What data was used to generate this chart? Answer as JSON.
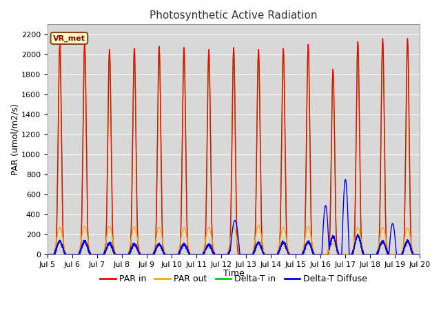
{
  "title": "Photosynthetic Active Radiation",
  "xlabel": "Time",
  "ylabel": "PAR (umol/m2/s)",
  "ylim": [
    0,
    2300
  ],
  "yticks": [
    0,
    200,
    400,
    600,
    800,
    1000,
    1200,
    1400,
    1600,
    1800,
    2000,
    2200
  ],
  "xticklabels": [
    "Jul 5",
    "Jul 6",
    "Jul 7",
    "Jul 8",
    "Jul 9",
    "Jul 10",
    "Jul 11",
    "Jul 12",
    "Jul 13",
    "Jul 14",
    "Jul 15",
    "Jul 16",
    "Jul 17",
    "Jul 18",
    "Jul 19",
    "Jul 20"
  ],
  "xtick_positions": [
    5,
    6,
    7,
    8,
    9,
    10,
    11,
    12,
    13,
    14,
    15,
    16,
    17,
    18,
    19,
    20
  ],
  "color_par_in": "#ff0000",
  "color_par_out": "#ffa500",
  "color_delta_t_in": "#00cc00",
  "color_delta_t_diffuse": "#0000ee",
  "legend_label": "VR_met",
  "legend_box_color": "#ffffcc",
  "legend_box_border": "#8B4513",
  "plot_bg_color": "#d8d8d8",
  "grid_color": "#ffffff",
  "fig_bg_color": "#ffffff",
  "linewidth": 1.0,
  "n_points": 5000
}
